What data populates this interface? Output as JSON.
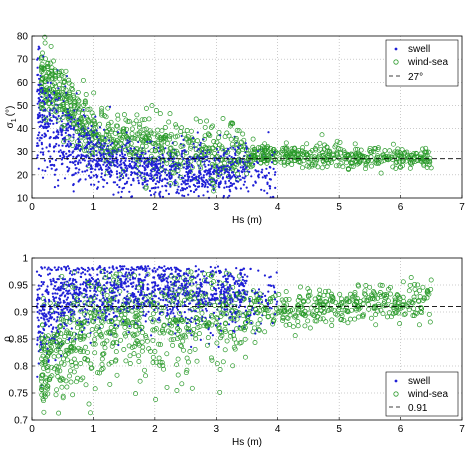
{
  "chart_data": [
    {
      "type": "scatter",
      "xlabel": "Hs (m)",
      "ylabel": "σ",
      "ylabel_sub": "1",
      "ylabel_unit": "(°)",
      "xlim": [
        0,
        7
      ],
      "ylim": [
        10,
        80
      ],
      "xticks": [
        "0",
        "1",
        "2",
        "3",
        "4",
        "5",
        "6",
        "7"
      ],
      "yticks": [
        "10",
        "20",
        "30",
        "40",
        "50",
        "60",
        "70",
        "80"
      ],
      "grid": true,
      "legend_position": "top-right",
      "colors": {
        "swell": "#1f1fd6",
        "wind_sea": "#2a9a2a",
        "reference": "#000000"
      },
      "series": [
        {
          "name": "swell",
          "marker": "dot",
          "count": 1400,
          "trend": [
            [
              0.1,
              48
            ],
            [
              0.5,
              37
            ],
            [
              1.0,
              28
            ],
            [
              1.5,
              24
            ],
            [
              2.0,
              22
            ],
            [
              2.5,
              21
            ],
            [
              3.0,
              21
            ],
            [
              3.5,
              22
            ]
          ],
          "spread": 6
        },
        {
          "name": "wind-sea",
          "marker": "circle",
          "count": 1100,
          "trend": [
            [
              0.3,
              60
            ],
            [
              0.7,
              46
            ],
            [
              1.0,
              38
            ],
            [
              1.5,
              34
            ],
            [
              2.0,
              33
            ],
            [
              2.5,
              31
            ],
            [
              3.0,
              29
            ],
            [
              4.0,
              28
            ],
            [
              5.0,
              28
            ],
            [
              6.0,
              27
            ],
            [
              6.5,
              27
            ]
          ],
          "spread": 7
        },
        {
          "name": "27°",
          "type": "hline",
          "style": "dashed",
          "y": 27
        }
      ]
    },
    {
      "type": "scatter",
      "xlabel": "Hs (m)",
      "ylabel": "ρ",
      "xlim": [
        0,
        7
      ],
      "ylim": [
        0.7,
        1.0
      ],
      "xticks": [
        "0",
        "1",
        "2",
        "3",
        "4",
        "5",
        "6",
        "7"
      ],
      "yticks": [
        "0.7",
        "0.75",
        "0.8",
        "0.85",
        "0.9",
        "0.95",
        "1"
      ],
      "grid": true,
      "legend_position": "bottom-right",
      "colors": {
        "swell": "#1f1fd6",
        "wind_sea": "#2a9a2a",
        "reference": "#000000"
      },
      "series": [
        {
          "name": "swell",
          "marker": "dot",
          "count": 1400,
          "trend": [
            [
              0.1,
              0.9
            ],
            [
              0.5,
              0.925
            ],
            [
              1.0,
              0.935
            ],
            [
              1.5,
              0.94
            ],
            [
              2.0,
              0.94
            ],
            [
              2.5,
              0.935
            ],
            [
              3.0,
              0.93
            ],
            [
              3.5,
              0.93
            ]
          ],
          "spread": 0.03
        },
        {
          "name": "wind-sea",
          "marker": "circle",
          "count": 1100,
          "trend": [
            [
              0.2,
              0.8
            ],
            [
              0.5,
              0.84
            ],
            [
              1.0,
              0.87
            ],
            [
              1.5,
              0.88
            ],
            [
              2.0,
              0.885
            ],
            [
              2.5,
              0.89
            ],
            [
              3.0,
              0.895
            ],
            [
              4.0,
              0.9
            ],
            [
              5.0,
              0.91
            ],
            [
              6.0,
              0.92
            ],
            [
              6.5,
              0.92
            ]
          ],
          "spread": 0.05
        },
        {
          "name": "0.91",
          "type": "hline",
          "style": "dashed",
          "y": 0.91
        }
      ]
    }
  ]
}
